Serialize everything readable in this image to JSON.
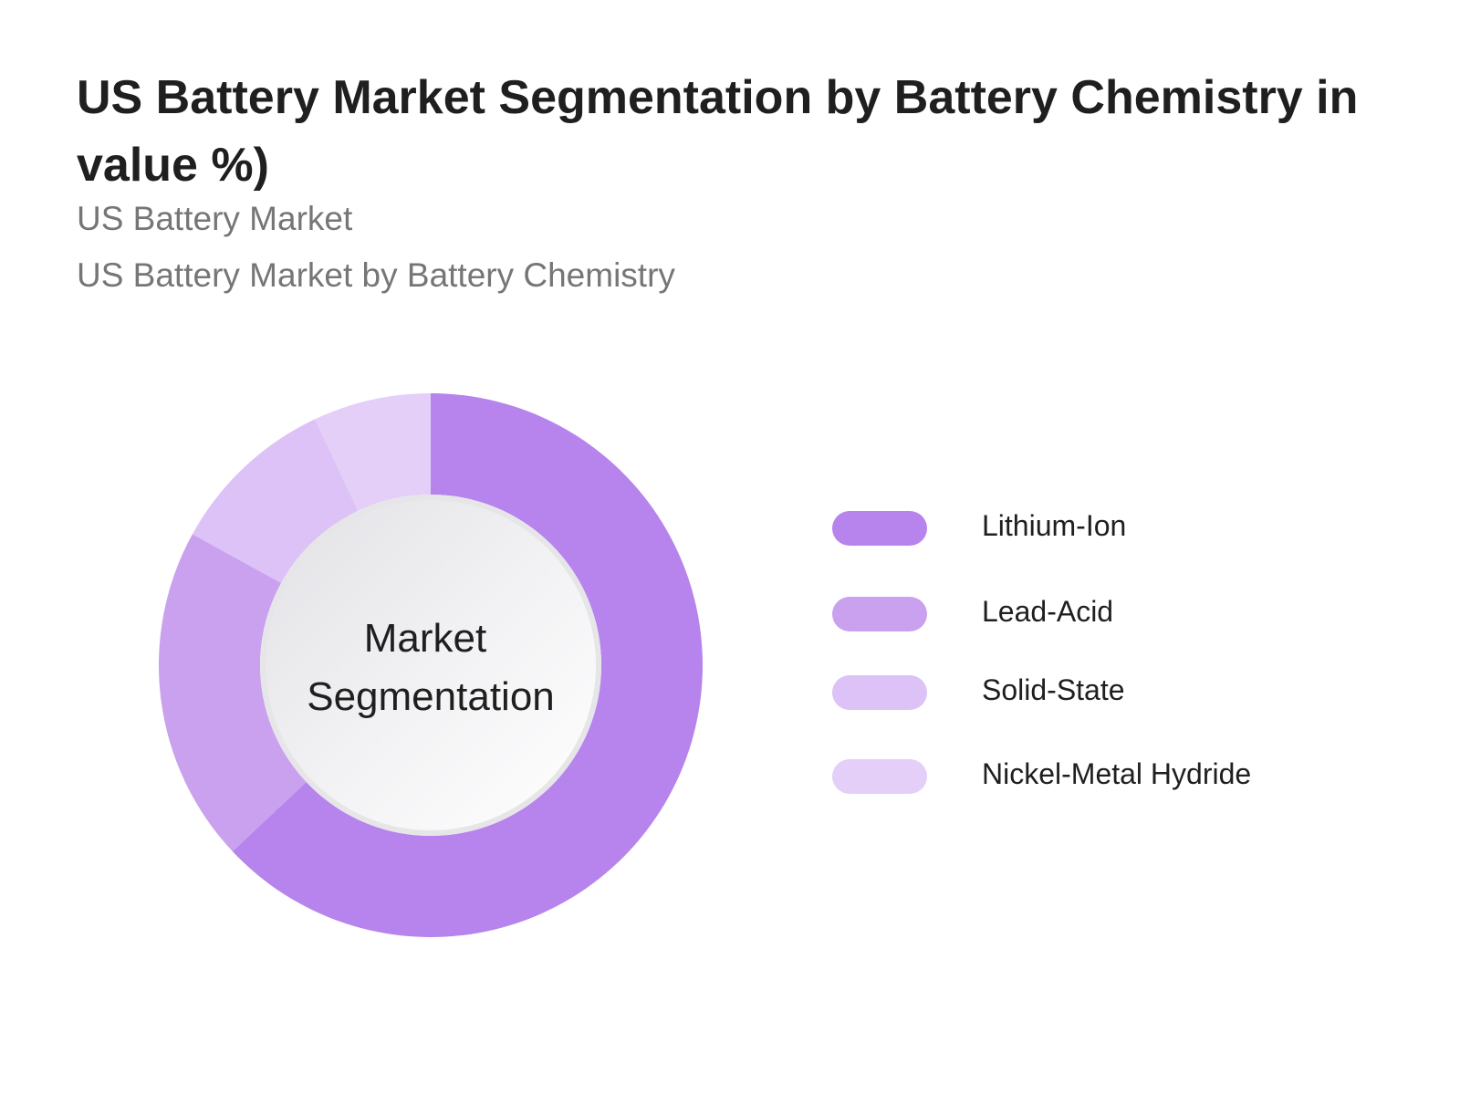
{
  "header": {
    "title": "US Battery Market Segmentation by Battery Chemistry in value %)",
    "subtitle_1": "US Battery Market",
    "subtitle_2": "US Battery Market by Battery Chemistry"
  },
  "chart_data": {
    "type": "pie",
    "variant": "donut",
    "center_label_line1": "Market",
    "center_label_line2": "Segmentation",
    "legend_position": "right",
    "categories": [
      "Lithium-Ion",
      "Lead-Acid",
      "Solid-State",
      "Nickel-Metal Hydride"
    ],
    "values": [
      63,
      20,
      10,
      7
    ],
    "colors": [
      "#b684ec",
      "#c9a1ee",
      "#dcc2f6",
      "#e4cff8"
    ]
  }
}
